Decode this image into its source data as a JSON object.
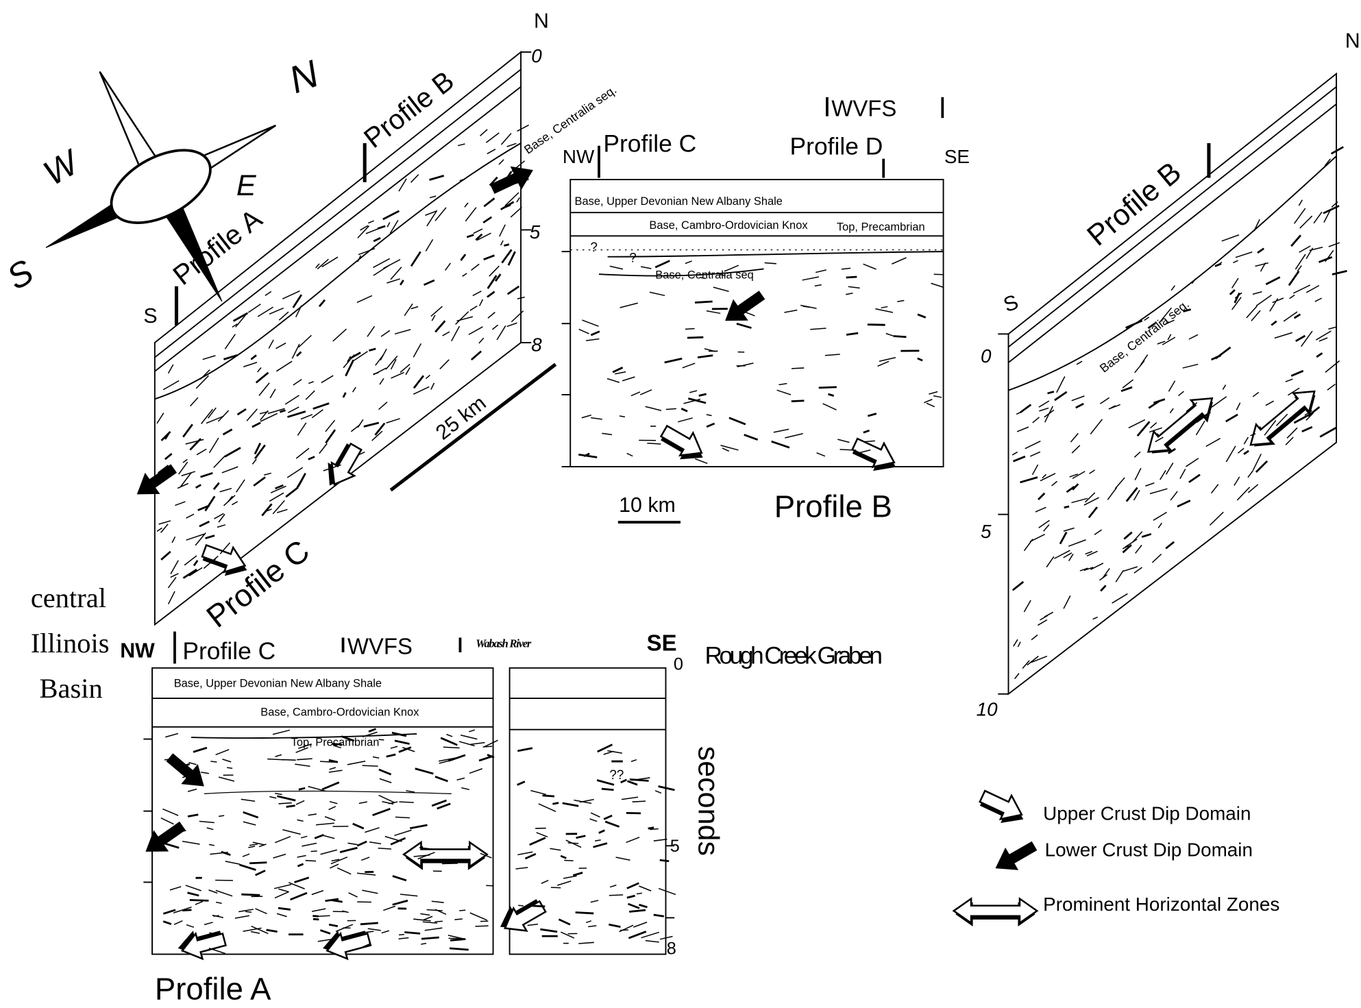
{
  "compass": {
    "north": "N",
    "east": "E",
    "south": "S",
    "west": "W"
  },
  "profile_b_oblique": {
    "profile_a": "Profile A",
    "profile_b": "Profile B",
    "profile_c": "Profile C",
    "south": "S",
    "north": "N",
    "horizon": "Base, Centralia seq.",
    "scale": "25 km",
    "depth_ticks": [
      0,
      5,
      8
    ]
  },
  "profile_b_section": {
    "fault_zone": "WVFS",
    "northwest": "NW",
    "profile_c": "Profile C",
    "profile_d": "Profile D",
    "southeast": "SE",
    "horizons": [
      "Base, Upper Devonian New Albany Shale",
      "Base, Cambro-Ordovician Knox",
      "Top, Precambrian",
      "Base, Centralia seq"
    ],
    "queries": [
      "?",
      "?"
    ],
    "scale": "10 km",
    "title": "Profile B"
  },
  "profile_d_oblique": {
    "north": "N",
    "south": "S",
    "profile_b": "Profile B",
    "horizon": "Base, Centralia seq.",
    "depth_ticks": [
      0,
      5,
      10
    ]
  },
  "profile_a_section": {
    "region_left": [
      "central",
      "Illinois",
      "Basin"
    ],
    "northwest": "NW",
    "profile_c": "Profile C",
    "fault_zone": "WVFS",
    "river": "Wabash River",
    "southeast": "SE",
    "region_right": "Rough Creek Graben",
    "horizons": [
      "Base, Upper Devonian New Albany Shale",
      "Base, Cambro-Ordovician Knox",
      "Top, Precambrian"
    ],
    "query": "??",
    "depth_ticks": [
      0,
      5,
      8
    ],
    "axis_label": "seconds",
    "title": "Profile A"
  },
  "legend": {
    "upper_crust": "Upper Crust Dip Domain",
    "lower_crust": "Lower  Crust Dip Domain",
    "horizontal_zones": "Prominent Horizontal Zones"
  }
}
